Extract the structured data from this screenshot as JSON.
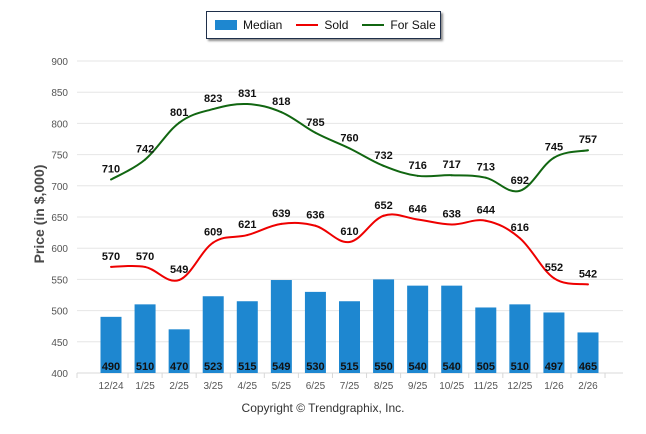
{
  "legend": {
    "median_label": "Median",
    "sold_label": "Sold",
    "forsale_label": "For Sale"
  },
  "footer": "Copyright © Trendgraphix, Inc.",
  "chart_data": {
    "type": "bar",
    "title": "",
    "xlabel": "",
    "ylabel": "Price (in $,000)",
    "ylim": [
      400,
      900
    ],
    "yticks": [
      400,
      450,
      500,
      550,
      600,
      650,
      700,
      750,
      800,
      850,
      900
    ],
    "grid": true,
    "legend_position": "top-center",
    "categories": [
      "12/24",
      "1/25",
      "2/25",
      "3/25",
      "4/25",
      "5/25",
      "6/25",
      "7/25",
      "8/25",
      "9/25",
      "10/25",
      "11/25",
      "12/25",
      "1/26",
      "2/26"
    ],
    "series": [
      {
        "name": "Median",
        "kind": "bar",
        "color": "#1e87d0",
        "values": [
          490,
          510,
          470,
          523,
          515,
          549,
          530,
          515,
          550,
          540,
          540,
          505,
          510,
          497,
          465
        ]
      },
      {
        "name": "Sold",
        "kind": "line",
        "color": "#ee0000",
        "values": [
          570,
          570,
          549,
          609,
          621,
          639,
          636,
          610,
          652,
          646,
          638,
          644,
          616,
          552,
          542
        ]
      },
      {
        "name": "For Sale",
        "kind": "line",
        "color": "#116611",
        "values": [
          710,
          742,
          801,
          823,
          831,
          818,
          785,
          760,
          732,
          716,
          717,
          713,
          692,
          745,
          757
        ]
      }
    ]
  }
}
